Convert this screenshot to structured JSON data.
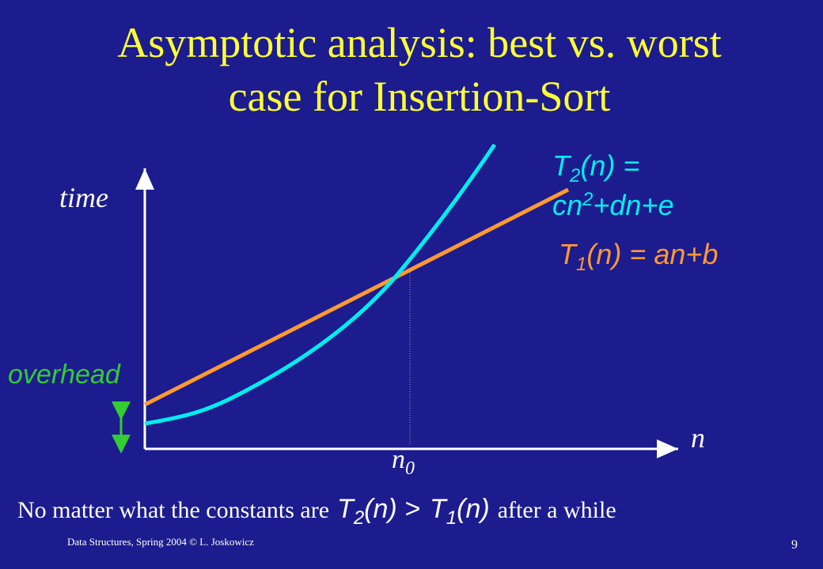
{
  "title": [
    "Asymptotic analysis: best vs. worst",
    "case for Insertion-Sort"
  ],
  "axes": {
    "y_label": "time",
    "x_label": "n"
  },
  "crossover": {
    "base": "n",
    "sub": "0"
  },
  "overhead": "overhead",
  "t2": {
    "line1": {
      "base": "T",
      "sub": "2",
      "rest": "(n) ="
    },
    "line2": {
      "base": "cn",
      "sup": "2",
      "rest": "+dn+e"
    }
  },
  "t1": {
    "base": "T",
    "sub": "1",
    "rest": "(n) = an+b"
  },
  "caption": {
    "text": "No matter what the constants are",
    "lhs": {
      "base": "T",
      "sub": "2",
      "rest": "(n) >"
    },
    "rhs": {
      "base": "T",
      "sub": "1",
      "rest": "(n)"
    },
    "tail": "after a while"
  },
  "footer": "Data Structures, Spring 2004 © L. Joskowicz",
  "page": "9"
}
